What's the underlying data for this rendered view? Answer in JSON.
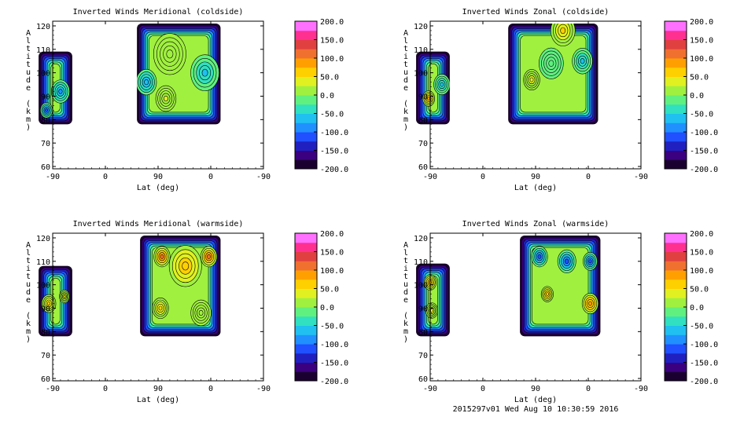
{
  "chart_data": [
    {
      "type": "heatmap",
      "title": "Inverted Winds Meridional (coldside)",
      "xlabel": "Lat (deg)",
      "ylabel": "Altitude (km)",
      "xticks": [
        "-90",
        "0",
        "90",
        "0",
        "-90"
      ],
      "ylim": [
        59,
        122
      ],
      "yticks": [
        60,
        70,
        80,
        90,
        100,
        110,
        120
      ],
      "colorbar": {
        "ticks": [
          "200.0",
          "150.0",
          "100.0",
          "50.0",
          "0.0",
          "-50.0",
          "-100.0",
          "-150.0",
          "-200.0"
        ],
        "range": [
          -200,
          200
        ]
      },
      "regions": [
        {
          "x_range": [
            -18,
            25
          ],
          "alt_range": [
            78,
            109
          ],
          "blobs": [
            {
              "x": 10,
              "alt": 92,
              "value": -80,
              "r": 9
            },
            {
              "x": -8,
              "alt": 84,
              "value": -120,
              "r": 6
            }
          ]
        },
        {
          "x_range": [
            108,
            215
          ],
          "alt_range": [
            78,
            121
          ],
          "blobs": [
            {
              "x": 150,
              "alt": 108,
              "value": 20,
              "r": 16
            },
            {
              "x": 145,
              "alt": 89,
              "value": 30,
              "r": 10
            },
            {
              "x": 120,
              "alt": 96,
              "value": -70,
              "r": 10
            },
            {
              "x": 195,
              "alt": 100,
              "value": -60,
              "r": 14
            }
          ]
        }
      ]
    },
    {
      "type": "heatmap",
      "title": "Inverted Winds Zonal (coldside)",
      "xlabel": "Lat (deg)",
      "ylabel": "Altitude (km)",
      "xticks": [
        "-90",
        "0",
        "90",
        "0",
        "-90"
      ],
      "ylim": [
        59,
        122
      ],
      "yticks": [
        60,
        70,
        80,
        90,
        100,
        110,
        120
      ],
      "colorbar": {
        "ticks": [
          "200.0",
          "150.0",
          "100.0",
          "50.0",
          "0.0",
          "-50.0",
          "-100.0",
          "-150.0",
          "-200.0"
        ],
        "range": [
          -200,
          200
        ]
      },
      "regions": [
        {
          "x_range": [
            -18,
            25
          ],
          "alt_range": [
            78,
            109
          ],
          "blobs": [
            {
              "x": -2,
              "alt": 89,
              "value": 80,
              "r": 6
            },
            {
              "x": 15,
              "alt": 95,
              "value": -60,
              "r": 8
            }
          ]
        },
        {
          "x_range": [
            100,
            215
          ],
          "alt_range": [
            78,
            121
          ],
          "blobs": [
            {
              "x": 170,
              "alt": 118,
              "value": 60,
              "r": 12
            },
            {
              "x": 130,
              "alt": 97,
              "value": 40,
              "r": 8
            },
            {
              "x": 195,
              "alt": 105,
              "value": -60,
              "r": 10
            },
            {
              "x": 155,
              "alt": 104,
              "value": -20,
              "r": 12
            }
          ]
        }
      ]
    },
    {
      "type": "heatmap",
      "title": "Inverted Winds Meridional (warmside)",
      "xlabel": "Lat (deg)",
      "ylabel": "Altitude (km)",
      "xticks": [
        "-90",
        "0",
        "90",
        "0",
        "-90"
      ],
      "ylim": [
        59,
        122
      ],
      "yticks": [
        60,
        70,
        80,
        90,
        100,
        110,
        120
      ],
      "colorbar": {
        "ticks": [
          "200.0",
          "150.0",
          "100.0",
          "50.0",
          "0.0",
          "-50.0",
          "-100.0",
          "-150.0",
          "-200.0"
        ],
        "range": [
          -200,
          200
        ]
      },
      "regions": [
        {
          "x_range": [
            -18,
            25
          ],
          "alt_range": [
            78,
            108
          ],
          "blobs": [
            {
              "x": -5,
              "alt": 92,
              "value": 60,
              "r": 7
            },
            {
              "x": 15,
              "alt": 95,
              "value": 40,
              "r": 5
            }
          ]
        },
        {
          "x_range": [
            112,
            215
          ],
          "alt_range": [
            78,
            121
          ],
          "blobs": [
            {
              "x": 140,
              "alt": 112,
              "value": 110,
              "r": 8
            },
            {
              "x": 200,
              "alt": 112,
              "value": 110,
              "r": 8
            },
            {
              "x": 170,
              "alt": 108,
              "value": 70,
              "r": 16
            },
            {
              "x": 138,
              "alt": 90,
              "value": 60,
              "r": 8
            },
            {
              "x": 190,
              "alt": 88,
              "value": 20,
              "r": 10
            }
          ]
        }
      ]
    },
    {
      "type": "heatmap",
      "title": "Inverted Winds Zonal (warmside)",
      "xlabel": "Lat (deg)",
      "ylabel": "Altitude (km)",
      "xticks": [
        "-90",
        "0",
        "90",
        "0",
        "-90"
      ],
      "ylim": [
        59,
        122
      ],
      "yticks": [
        60,
        70,
        80,
        90,
        100,
        110,
        120
      ],
      "colorbar": {
        "ticks": [
          "200.0",
          "150.0",
          "100.0",
          "50.0",
          "0.0",
          "-50.0",
          "-100.0",
          "-150.0",
          "-200.0"
        ],
        "range": [
          -200,
          200
        ]
      },
      "regions": [
        {
          "x_range": [
            -18,
            25
          ],
          "alt_range": [
            78,
            109
          ],
          "blobs": [
            {
              "x": 0,
              "alt": 101,
              "value": 70,
              "r": 6
            },
            {
              "x": 2,
              "alt": 89,
              "value": 40,
              "r": 6
            }
          ]
        },
        {
          "x_range": [
            115,
            218
          ],
          "alt_range": [
            78,
            121
          ],
          "blobs": [
            {
              "x": 150,
              "alt": 96,
              "value": 70,
              "r": 6
            },
            {
              "x": 205,
              "alt": 92,
              "value": 90,
              "r": 8
            },
            {
              "x": 140,
              "alt": 112,
              "value": -120,
              "r": 8
            },
            {
              "x": 175,
              "alt": 110,
              "value": -110,
              "r": 9
            },
            {
              "x": 205,
              "alt": 110,
              "value": -120,
              "r": 7
            }
          ]
        }
      ]
    }
  ],
  "footer": {
    "stamp": "2015297v01 Wed Aug 10 10:30:59 2016"
  }
}
